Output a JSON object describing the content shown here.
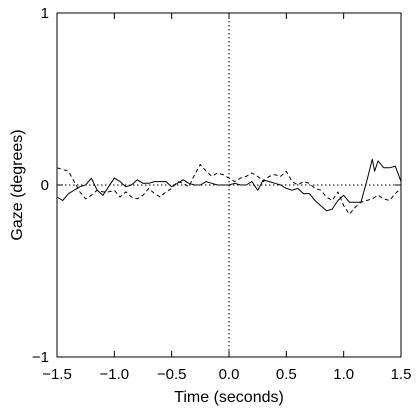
{
  "chart_data": {
    "type": "line",
    "title": "",
    "xlabel": "Time (seconds)",
    "ylabel": "Gaze (degrees)",
    "xlim": [
      -1.5,
      1.5
    ],
    "ylim": [
      -1,
      1
    ],
    "xticks": [
      -1.5,
      -1.0,
      -0.5,
      0.0,
      0.5,
      1.0,
      1.5
    ],
    "xtick_labels": [
      "−1.5",
      "−1.0",
      "−0.5",
      "0.0",
      "0.5",
      "1.0",
      "1.5"
    ],
    "yticks": [
      -1,
      0,
      1
    ],
    "ytick_labels": [
      "−1",
      "0",
      "1"
    ],
    "grid": false,
    "reference_lines": [
      {
        "orientation": "vertical",
        "value": 0,
        "style": "dotted"
      },
      {
        "orientation": "horizontal",
        "value": 0,
        "style": "dotted"
      }
    ],
    "series": [
      {
        "style": "solid",
        "x": [
          -1.5,
          -1.45,
          -1.4,
          -1.35,
          -1.3,
          -1.25,
          -1.2,
          -1.15,
          -1.1,
          -1.05,
          -1.0,
          -0.95,
          -0.9,
          -0.85,
          -0.8,
          -0.75,
          -0.7,
          -0.65,
          -0.6,
          -0.55,
          -0.5,
          -0.45,
          -0.4,
          -0.35,
          -0.3,
          -0.25,
          -0.2,
          -0.15,
          -0.1,
          -0.05,
          0.0,
          0.05,
          0.1,
          0.15,
          0.2,
          0.25,
          0.3,
          0.35,
          0.4,
          0.45,
          0.5,
          0.55,
          0.6,
          0.65,
          0.7,
          0.75,
          0.8,
          0.85,
          0.9,
          0.95,
          1.0,
          1.05,
          1.1,
          1.15,
          1.2,
          1.25,
          1.27,
          1.3,
          1.35,
          1.4,
          1.45,
          1.5
        ],
        "y": [
          -0.07,
          -0.09,
          -0.05,
          -0.03,
          -0.01,
          0.0,
          0.04,
          -0.03,
          -0.06,
          -0.01,
          0.04,
          0.02,
          -0.01,
          0.0,
          0.03,
          0.01,
          0.01,
          0.02,
          0.02,
          0.02,
          -0.01,
          0.01,
          0.03,
          0.01,
          0.0,
          0.0,
          0.02,
          0.01,
          0.0,
          0.0,
          0.0,
          0.01,
          0.0,
          0.0,
          0.02,
          -0.03,
          0.03,
          0.02,
          0.01,
          0.0,
          -0.02,
          -0.03,
          -0.02,
          -0.05,
          -0.05,
          -0.09,
          -0.12,
          -0.15,
          -0.14,
          -0.09,
          -0.06,
          -0.1,
          -0.1,
          -0.1,
          0.02,
          0.15,
          0.08,
          0.14,
          0.1,
          0.1,
          0.11,
          0.02
        ]
      },
      {
        "style": "dashed",
        "x": [
          -1.5,
          -1.45,
          -1.4,
          -1.35,
          -1.3,
          -1.25,
          -1.2,
          -1.15,
          -1.1,
          -1.05,
          -1.0,
          -0.95,
          -0.9,
          -0.85,
          -0.8,
          -0.75,
          -0.7,
          -0.65,
          -0.6,
          -0.55,
          -0.5,
          -0.45,
          -0.4,
          -0.35,
          -0.3,
          -0.25,
          -0.2,
          -0.15,
          -0.1,
          -0.05,
          0.0,
          0.05,
          0.1,
          0.15,
          0.2,
          0.25,
          0.3,
          0.35,
          0.4,
          0.45,
          0.5,
          0.55,
          0.6,
          0.65,
          0.7,
          0.75,
          0.8,
          0.85,
          0.9,
          0.95,
          1.0,
          1.05,
          1.1,
          1.15,
          1.2,
          1.25,
          1.3,
          1.35,
          1.4,
          1.45,
          1.5
        ],
        "y": [
          0.1,
          0.09,
          0.08,
          0.02,
          -0.04,
          -0.08,
          -0.06,
          -0.03,
          -0.04,
          -0.04,
          -0.03,
          -0.07,
          -0.04,
          -0.07,
          -0.08,
          -0.06,
          -0.02,
          -0.05,
          -0.07,
          -0.04,
          -0.02,
          0.02,
          0.01,
          -0.01,
          0.06,
          0.12,
          0.08,
          0.05,
          0.07,
          0.06,
          0.04,
          0.02,
          0.04,
          0.05,
          0.07,
          0.05,
          0.02,
          0.05,
          0.06,
          0.05,
          0.08,
          0.02,
          0.0,
          0.02,
          0.01,
          -0.02,
          -0.03,
          -0.07,
          -0.09,
          -0.04,
          -0.12,
          -0.17,
          -0.13,
          -0.1,
          -0.09,
          -0.08,
          -0.06,
          -0.08,
          -0.09,
          -0.05,
          -0.02
        ]
      }
    ]
  }
}
